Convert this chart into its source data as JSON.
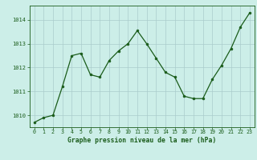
{
  "x": [
    0,
    1,
    2,
    3,
    4,
    5,
    6,
    7,
    8,
    9,
    10,
    11,
    12,
    13,
    14,
    15,
    16,
    17,
    18,
    19,
    20,
    21,
    22,
    23
  ],
  "y": [
    1009.7,
    1009.9,
    1010.0,
    1011.2,
    1012.5,
    1012.6,
    1011.7,
    1011.6,
    1012.3,
    1012.7,
    1013.0,
    1013.55,
    1013.0,
    1012.4,
    1011.8,
    1011.6,
    1010.8,
    1010.7,
    1010.7,
    1011.5,
    1012.1,
    1012.8,
    1013.7,
    1014.3
  ],
  "xlim": [
    -0.5,
    23.5
  ],
  "ylim": [
    1009.5,
    1014.6
  ],
  "yticks": [
    1010,
    1011,
    1012,
    1013,
    1014
  ],
  "xticks": [
    0,
    1,
    2,
    3,
    4,
    5,
    6,
    7,
    8,
    9,
    10,
    11,
    12,
    13,
    14,
    15,
    16,
    17,
    18,
    19,
    20,
    21,
    22,
    23
  ],
  "line_color": "#1a5c1a",
  "marker_color": "#1a5c1a",
  "bg_color": "#cceee8",
  "grid_color": "#aacccc",
  "xlabel": "Graphe pression niveau de la mer (hPa)",
  "xlabel_color": "#1a5c1a",
  "tick_color": "#1a5c1a"
}
